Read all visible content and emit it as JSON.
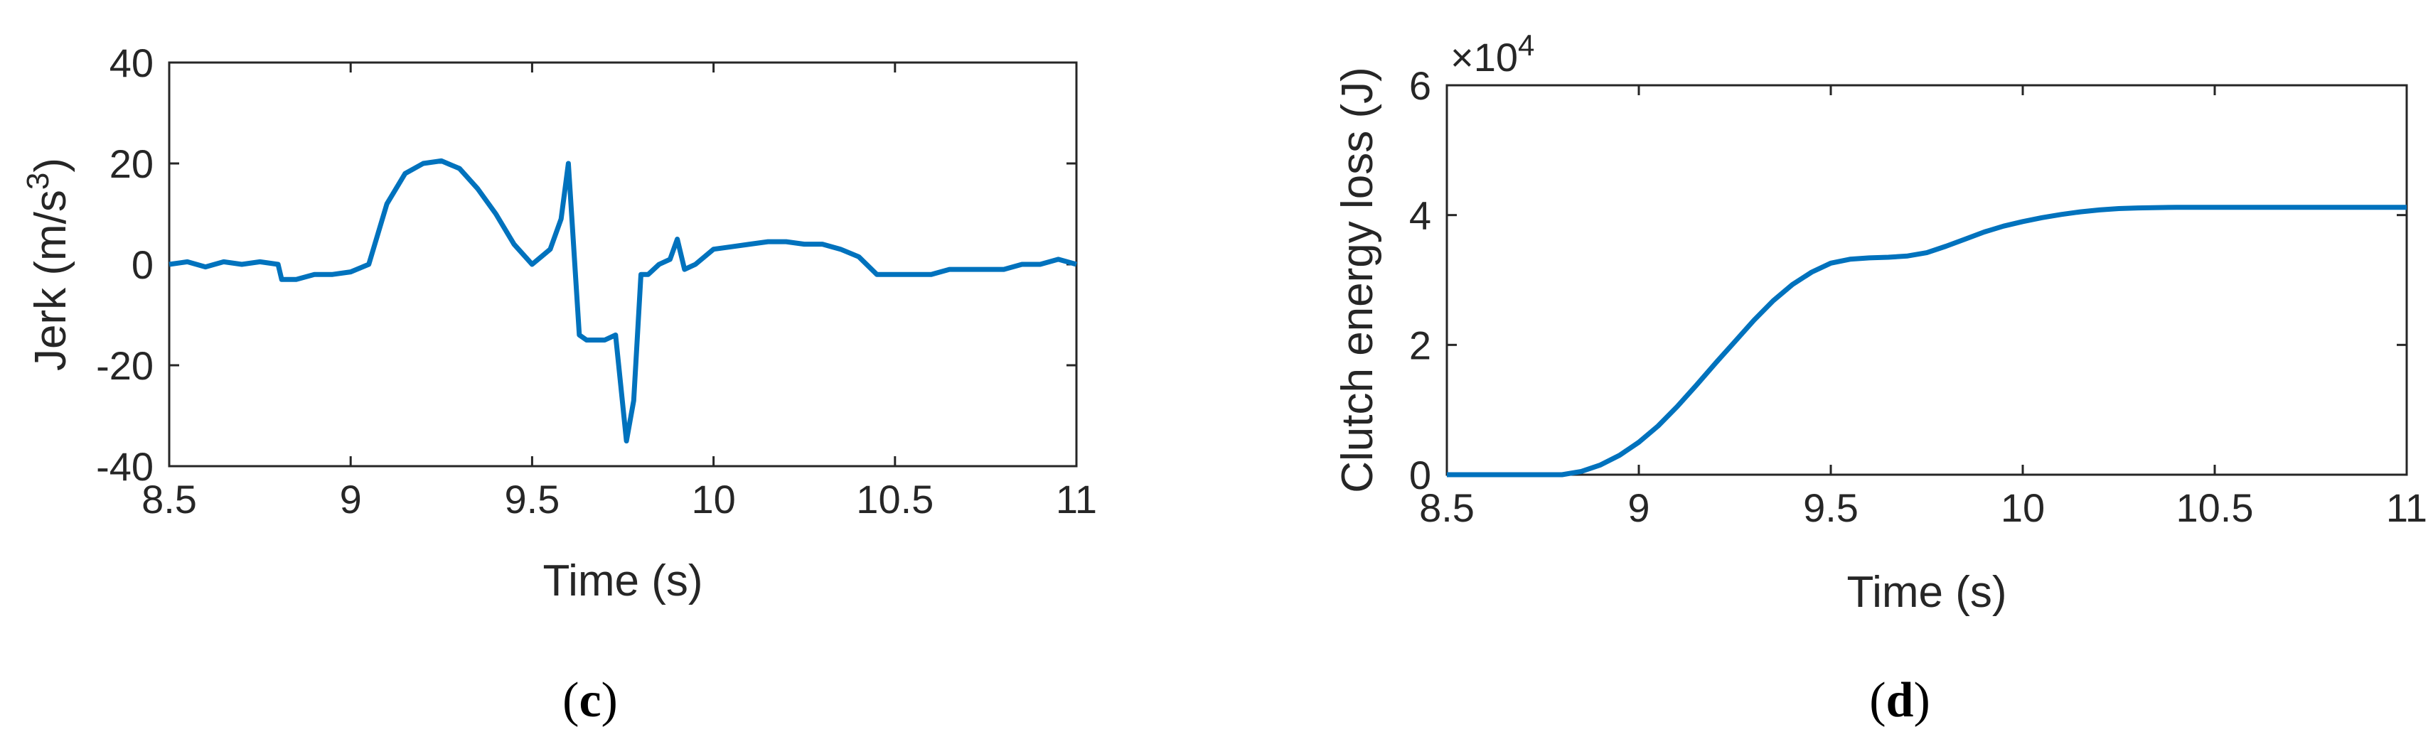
{
  "chart_data": [
    {
      "type": "line",
      "panel_label": "(c)",
      "panel_letter": "c",
      "xlabel": "Time (s)",
      "ylabel_main": "Jerk (m/s",
      "ylabel_sup": "3",
      "ylabel_close": ")",
      "xlim": [
        8.5,
        11
      ],
      "ylim": [
        -40,
        40
      ],
      "xticks": [
        "8.5",
        "9",
        "9.5",
        "10",
        "10.5",
        "11"
      ],
      "yticks": [
        "-40",
        "-20",
        "0",
        "20",
        "40"
      ],
      "line_color": "#0072BD",
      "series": [
        {
          "x": [
            8.5,
            8.55,
            8.6,
            8.65,
            8.7,
            8.75,
            8.8,
            8.81,
            8.85,
            8.9,
            8.95,
            9.0,
            9.05,
            9.1,
            9.15,
            9.2,
            9.25,
            9.3,
            9.35,
            9.4,
            9.45,
            9.5,
            9.55,
            9.58,
            9.6,
            9.63,
            9.65,
            9.7,
            9.73,
            9.76,
            9.78,
            9.8,
            9.82,
            9.85,
            9.88,
            9.9,
            9.92,
            9.95,
            10.0,
            10.05,
            10.1,
            10.15,
            10.2,
            10.25,
            10.3,
            10.35,
            10.4,
            10.45,
            10.5,
            10.55,
            10.6,
            10.65,
            10.7,
            10.75,
            10.8,
            10.85,
            10.9,
            10.95,
            11.0
          ],
          "y": [
            0,
            0.5,
            -0.5,
            0.5,
            0,
            0.5,
            0,
            -3,
            -3,
            -2,
            -2,
            -1.5,
            0,
            12,
            18,
            20,
            20.5,
            19,
            15,
            10,
            4,
            0,
            3,
            9,
            20,
            -14,
            -15,
            -15,
            -14,
            -35,
            -27,
            -2,
            -2,
            0,
            1,
            5,
            -1,
            0,
            3,
            3.5,
            4,
            4.5,
            4.5,
            4,
            4,
            3,
            1.5,
            -2,
            -2,
            -2,
            -2,
            -1,
            -1,
            -1,
            -1,
            0,
            0,
            1,
            0
          ]
        }
      ]
    },
    {
      "type": "line",
      "panel_label": "(d)",
      "panel_letter": "d",
      "xlabel": "Time (s)",
      "ylabel": "Clutch energy loss (J)",
      "scale_base": "×10",
      "scale_exp": "4",
      "xlim": [
        8.5,
        11
      ],
      "ylim": [
        0,
        6
      ],
      "xticks": [
        "8.5",
        "9",
        "9.5",
        "10",
        "10.5",
        "11"
      ],
      "yticks": [
        "0",
        "2",
        "4",
        "6"
      ],
      "line_color": "#0072BD",
      "series": [
        {
          "x": [
            8.5,
            8.7,
            8.8,
            8.85,
            8.9,
            8.95,
            9.0,
            9.05,
            9.1,
            9.15,
            9.2,
            9.25,
            9.3,
            9.35,
            9.4,
            9.45,
            9.5,
            9.55,
            9.6,
            9.65,
            9.7,
            9.75,
            9.8,
            9.85,
            9.9,
            9.95,
            10.0,
            10.05,
            10.1,
            10.15,
            10.2,
            10.25,
            10.3,
            10.4,
            10.5,
            10.6,
            10.7,
            10.8,
            10.9,
            11.0
          ],
          "y": [
            0,
            0,
            0,
            0.05,
            0.15,
            0.3,
            0.5,
            0.75,
            1.05,
            1.38,
            1.72,
            2.05,
            2.38,
            2.68,
            2.93,
            3.12,
            3.26,
            3.32,
            3.34,
            3.35,
            3.37,
            3.42,
            3.52,
            3.63,
            3.74,
            3.83,
            3.9,
            3.96,
            4.01,
            4.05,
            4.08,
            4.1,
            4.11,
            4.12,
            4.12,
            4.12,
            4.12,
            4.12,
            4.12,
            4.12
          ]
        }
      ]
    }
  ]
}
